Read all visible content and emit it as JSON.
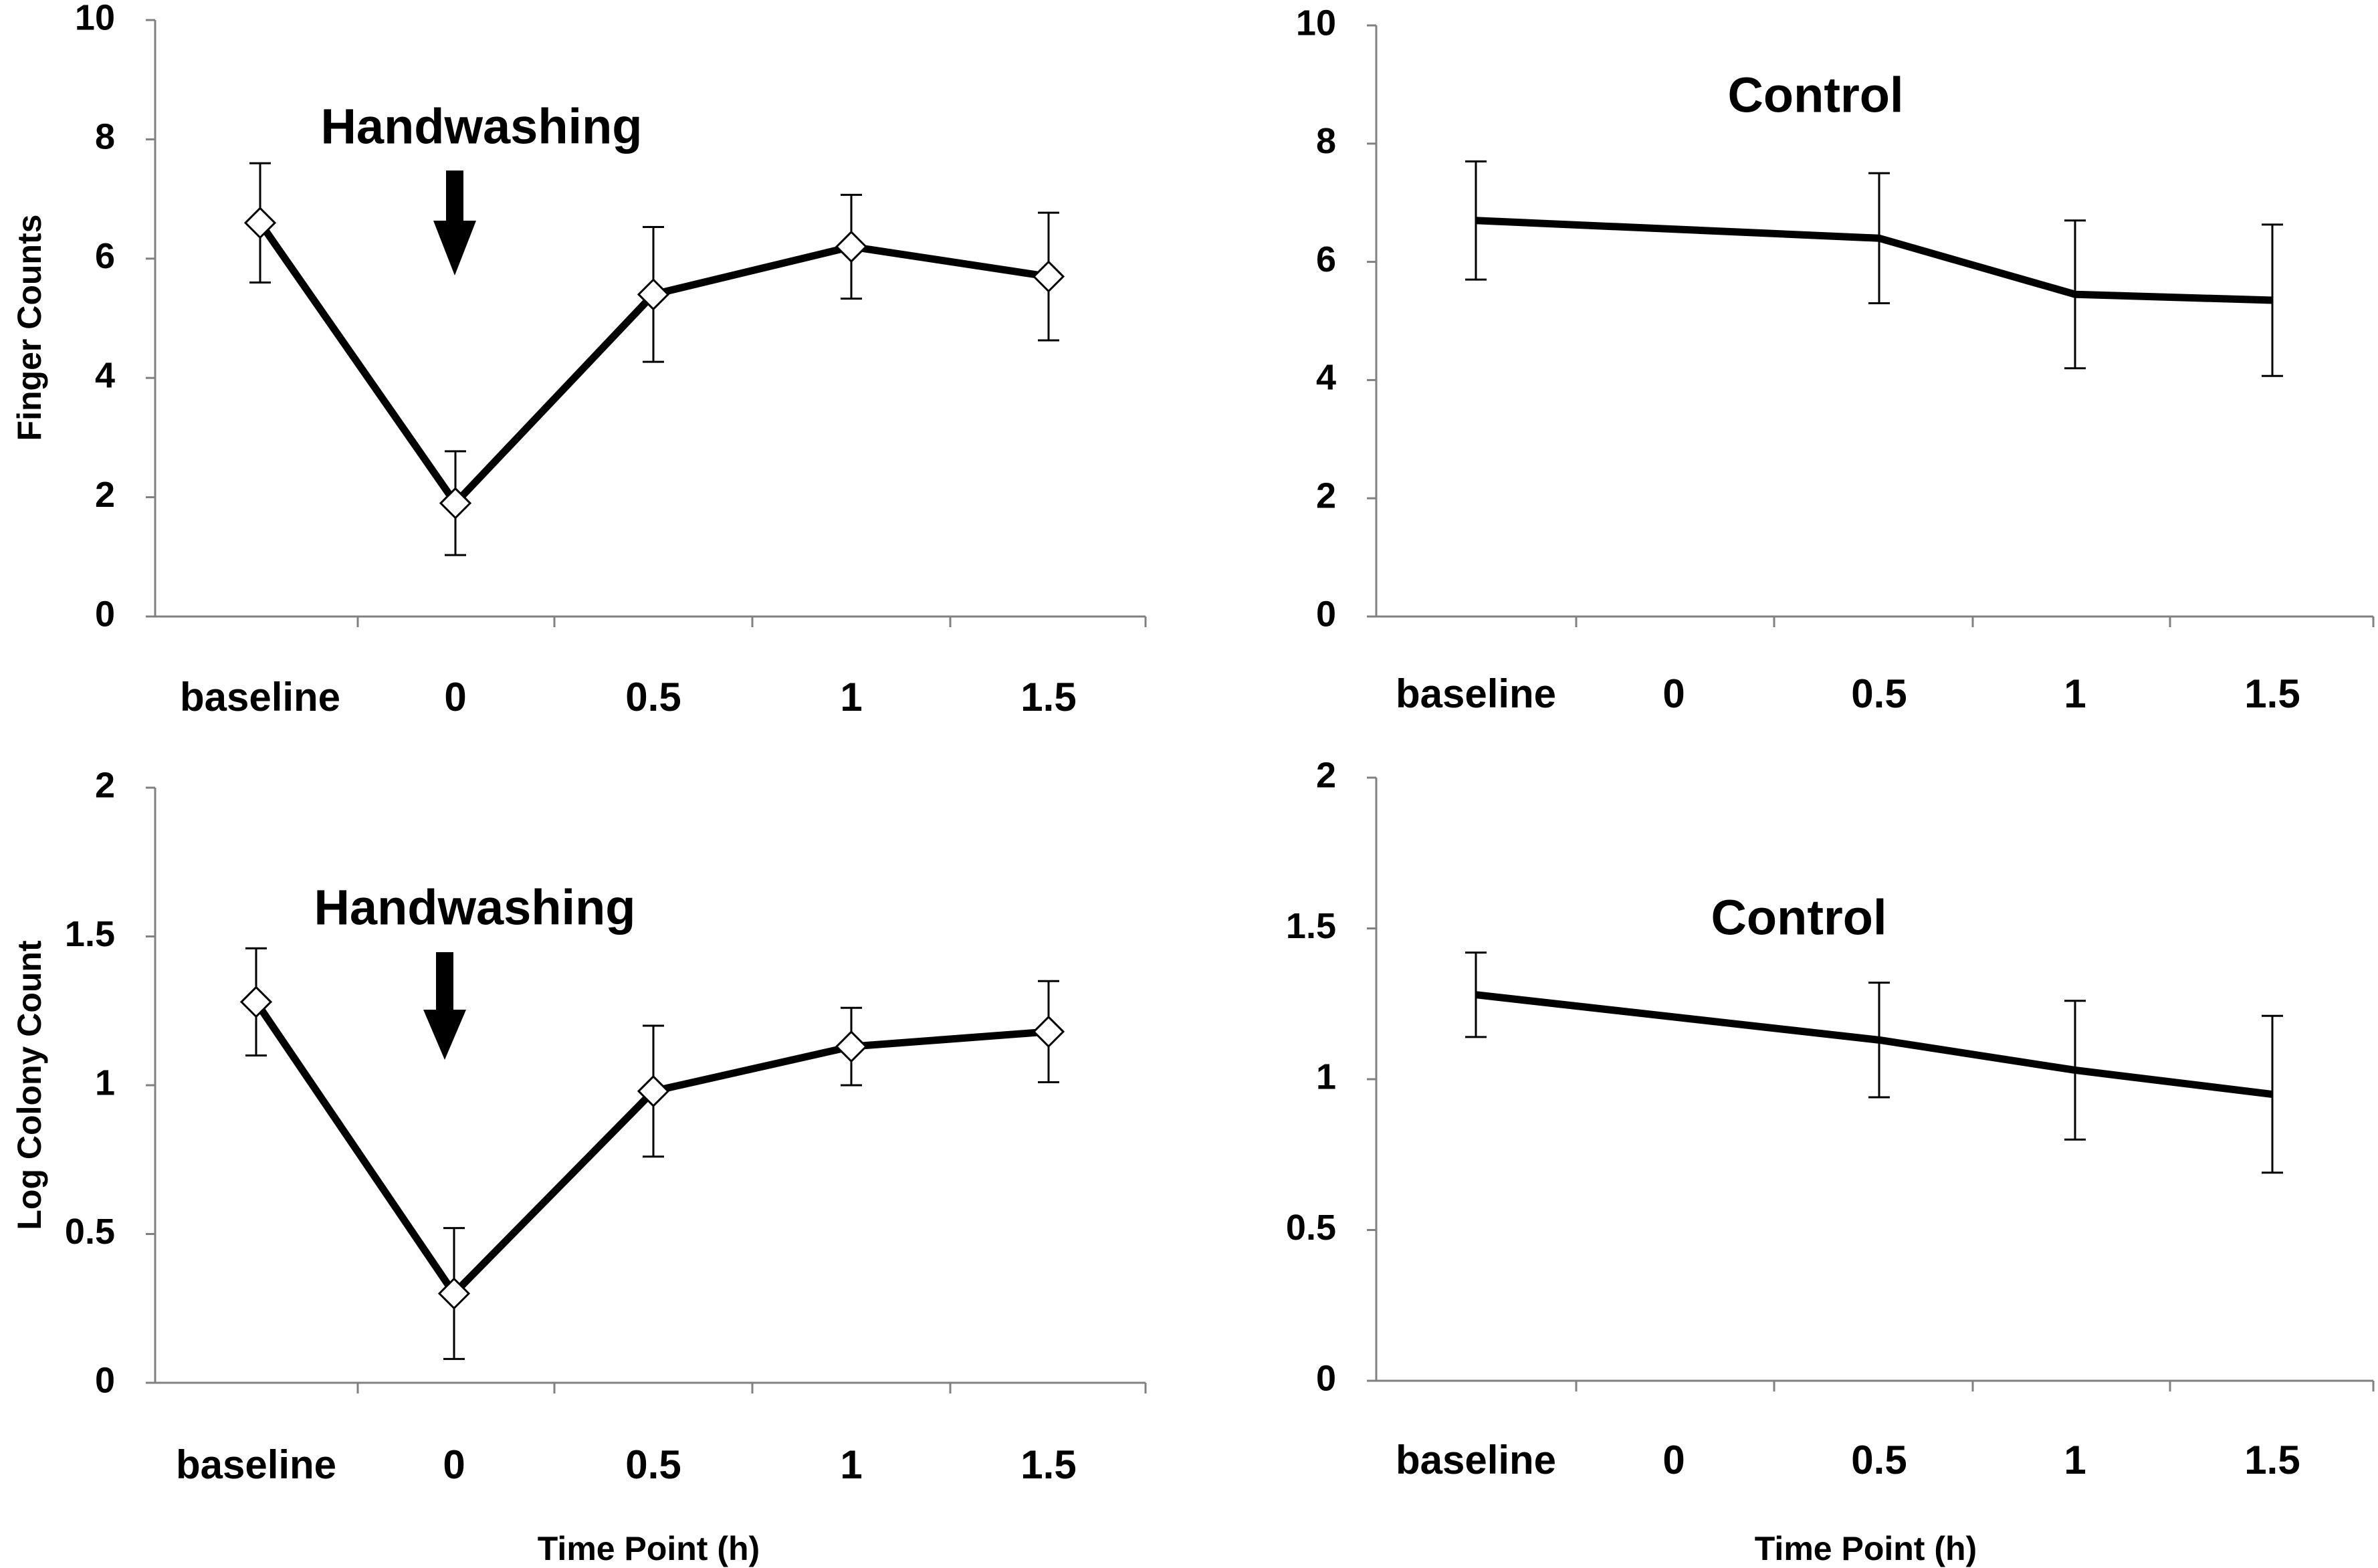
{
  "chart_data": [
    {
      "id": "top-left",
      "type": "line",
      "title": "Handwashing",
      "title_style": "annotation-with-arrow",
      "categories": [
        "baseline",
        "0",
        "0.5",
        "1",
        "1.5"
      ],
      "series": [
        {
          "name": "Handwashing",
          "values": [
            6.6,
            1.9,
            5.4,
            6.2,
            5.7
          ],
          "error": [
            1.0,
            0.87,
            1.13,
            0.87,
            1.07
          ],
          "markers": "open-diamond"
        }
      ],
      "ylim": [
        0,
        10
      ],
      "yticks": [
        0,
        2,
        4,
        6,
        8,
        10
      ],
      "ylabel": "Finger Counts",
      "xlabel": ""
    },
    {
      "id": "top-right",
      "type": "line",
      "title": "Control",
      "title_style": "label",
      "categories": [
        "baseline",
        "0",
        "0.5",
        "1",
        "1.5"
      ],
      "series": [
        {
          "name": "Control",
          "values": [
            6.7,
            null,
            6.4,
            5.45,
            5.35
          ],
          "error": [
            1.0,
            null,
            1.1,
            1.25,
            1.28
          ],
          "markers": "none"
        }
      ],
      "ylim": [
        0,
        10
      ],
      "yticks": [
        0,
        2,
        4,
        6,
        8,
        10
      ],
      "ylabel": "",
      "xlabel": ""
    },
    {
      "id": "bottom-left",
      "type": "line",
      "title": "Handwashing",
      "title_style": "annotation-with-arrow",
      "categories": [
        "baseline",
        "0",
        "0.5",
        "1",
        "1.5"
      ],
      "series": [
        {
          "name": "Handwashing",
          "values": [
            1.28,
            0.3,
            0.98,
            1.13,
            1.18
          ],
          "error": [
            0.18,
            0.22,
            0.22,
            0.13,
            0.17
          ],
          "markers": "open-diamond"
        }
      ],
      "ylim": [
        0,
        2
      ],
      "yticks": [
        0,
        0.5,
        1,
        1.5,
        2
      ],
      "ylabel": "Log  Colony Count",
      "xlabel": "Time Point (h)"
    },
    {
      "id": "bottom-right",
      "type": "line",
      "title": "Control",
      "title_style": "label",
      "categories": [
        "baseline",
        "0",
        "0.5",
        "1",
        "1.5"
      ],
      "series": [
        {
          "name": "Control",
          "values": [
            1.28,
            null,
            1.13,
            1.03,
            0.95
          ],
          "error": [
            0.14,
            null,
            0.19,
            0.23,
            0.26
          ],
          "markers": "none"
        }
      ],
      "ylim": [
        0,
        2
      ],
      "yticks": [
        0,
        0.5,
        1,
        1.5,
        2
      ],
      "ylabel": "",
      "xlabel": "Time Point (h)"
    }
  ]
}
